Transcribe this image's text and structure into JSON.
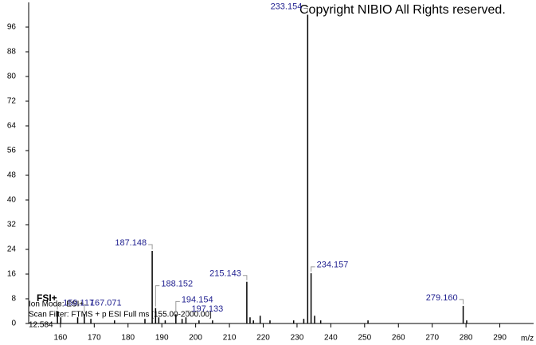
{
  "chart_data": {
    "type": "stick",
    "title": "Copyright NIBIO All Rights reserved.",
    "ion_mode_badge": "FSI+",
    "ion_mode": "Ion Mode: ESI+",
    "scan_filter": "Scan Filter: FTMS + p ESI Full ms [155.00-2000.00]",
    "retention_time": "12.584",
    "xlabel": "m/z",
    "x": [
      159.117,
      160.1,
      165.1,
      167.071,
      169.0,
      176.0,
      185.0,
      187.148,
      188.152,
      189.1,
      191.0,
      194.154,
      196.0,
      197.133,
      201.0,
      205.0,
      215.143,
      216.1,
      217.1,
      219.1,
      222.0,
      229.0,
      232.0,
      233.154,
      234.157,
      235.2,
      237.0,
      251.0,
      279.16,
      280.2
    ],
    "values": [
      4,
      2,
      2,
      3,
      1.5,
      1,
      1.5,
      23.5,
      5,
      2,
      1,
      3,
      1.5,
      2,
      1,
      1,
      13.5,
      2,
      1,
      2.5,
      1,
      1,
      1.5,
      100,
      16.3,
      2.5,
      1,
      1,
      5.7,
      1
    ],
    "labels": [
      "159.117",
      null,
      null,
      "167.071",
      null,
      null,
      null,
      "187.148",
      "188.152",
      null,
      null,
      "194.154",
      null,
      "197.133",
      null,
      null,
      "215.143",
      null,
      null,
      null,
      null,
      null,
      null,
      "233.154",
      "234.157",
      null,
      null,
      null,
      "279.160",
      null
    ],
    "color": "#000000",
    "label_color": "#1f1f8f",
    "xlim": [
      150.6,
      300
    ],
    "ylim": [
      0,
      104
    ],
    "xticks": [
      160,
      170,
      180,
      190,
      200,
      210,
      220,
      230,
      240,
      250,
      260,
      270,
      280,
      290
    ],
    "yticks": [
      0,
      8,
      16,
      24,
      32,
      40,
      48,
      56,
      64,
      72,
      80,
      88,
      96
    ]
  }
}
